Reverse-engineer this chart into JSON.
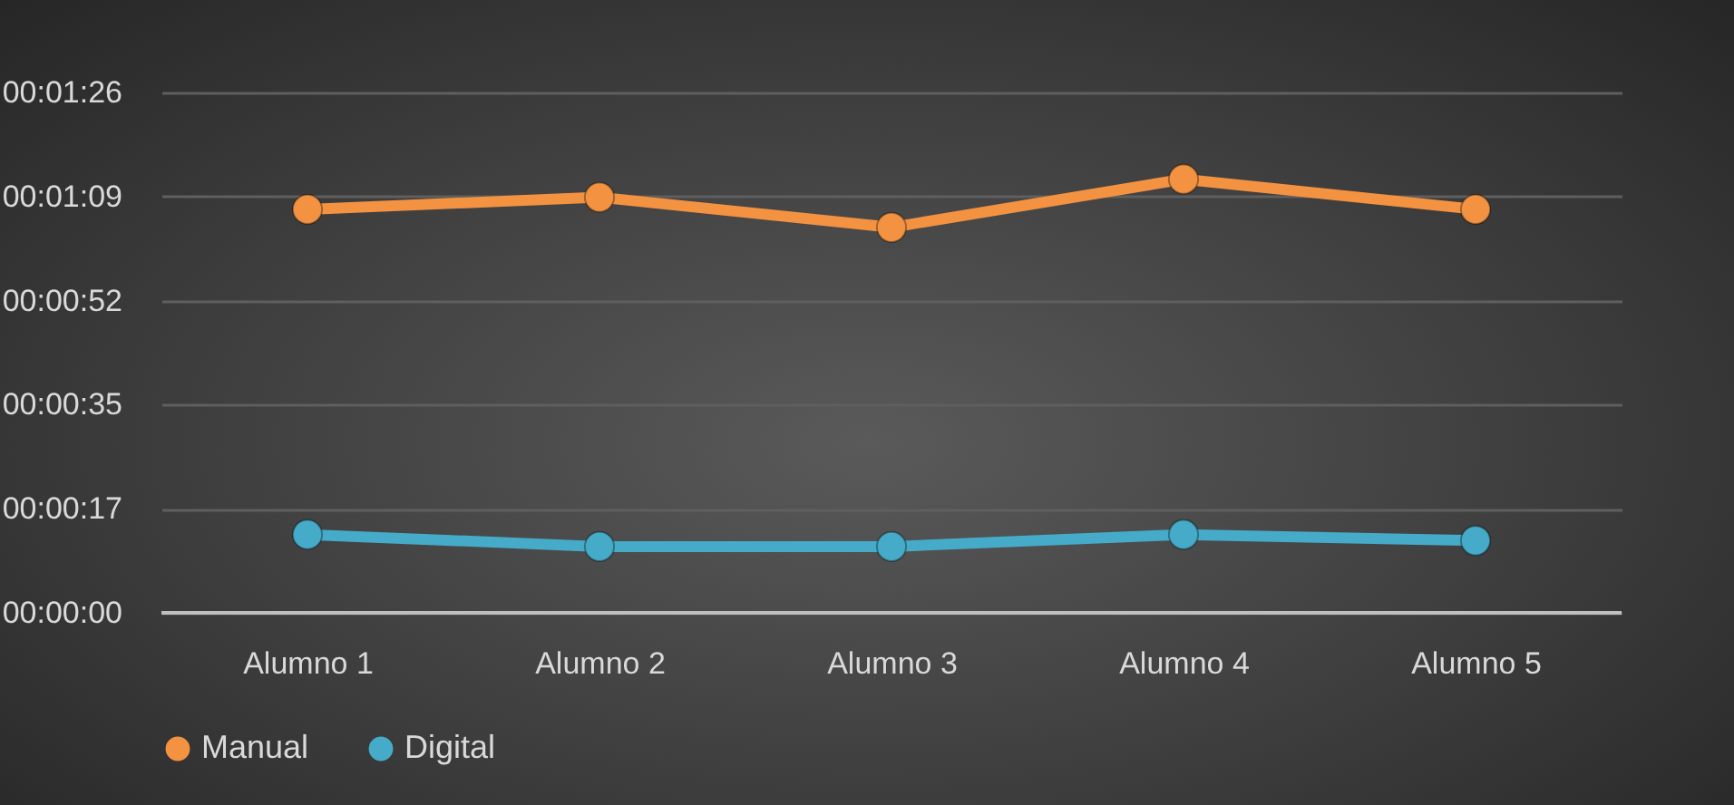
{
  "chart_data": {
    "type": "line",
    "categories": [
      "Alumno 1",
      "Alumno 2",
      "Alumno 3",
      "Alumno 4",
      "Alumno 5"
    ],
    "series": [
      {
        "name": "Manual",
        "color": "#f39241",
        "values": [
          67,
          69,
          64,
          72,
          67
        ]
      },
      {
        "name": "Digital",
        "color": "#45abc8",
        "values": [
          13,
          11,
          11,
          13,
          12
        ]
      }
    ],
    "ylim": [
      0,
      86.4
    ],
    "yticks": [
      {
        "value": 0,
        "label": "00:00:00"
      },
      {
        "value": 17.28,
        "label": "00:00:17"
      },
      {
        "value": 34.56,
        "label": "00:00:35"
      },
      {
        "value": 51.84,
        "label": "00:00:52"
      },
      {
        "value": 69.12,
        "label": "00:01:09"
      },
      {
        "value": 86.4,
        "label": "00:01:26"
      }
    ],
    "grid": "y",
    "legend": "bottom",
    "marker": "circle",
    "line_style": "solid"
  }
}
